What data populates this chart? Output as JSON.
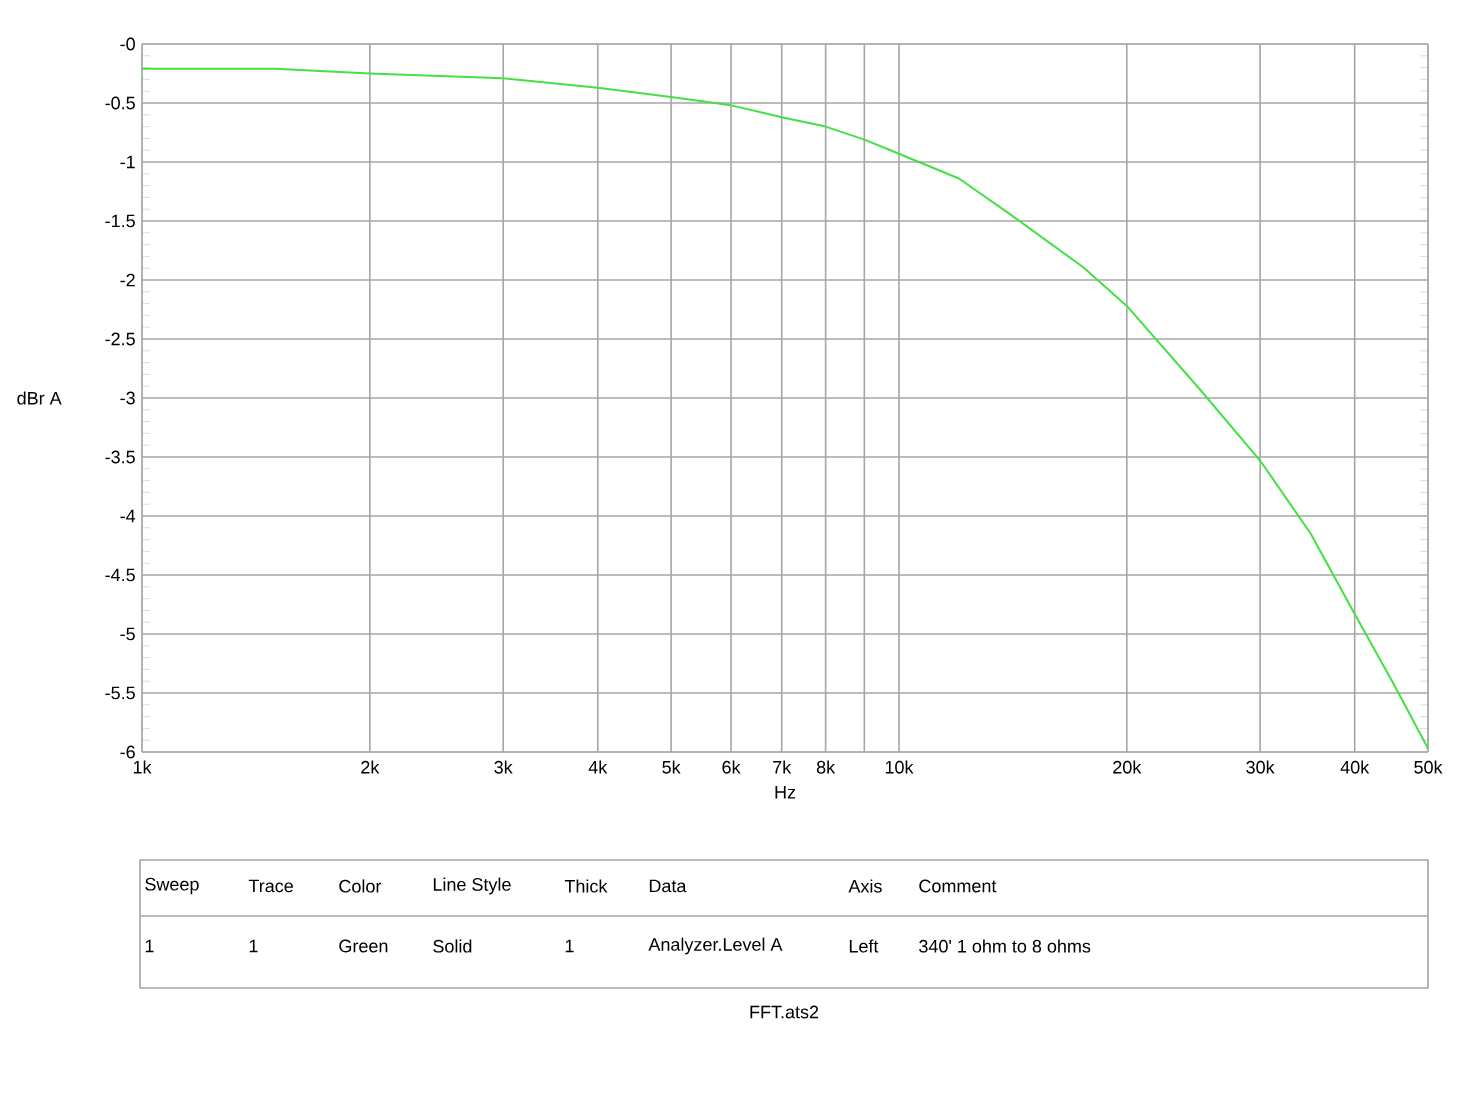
{
  "chart_data": {
    "type": "line",
    "xlabel": "Hz",
    "ylabel": "dBr A",
    "log": "x",
    "grid": true,
    "marker": "none",
    "line_style": "solid",
    "xlim": [
      1000,
      50000
    ],
    "ylim": [
      -6,
      0
    ],
    "xticks": [
      {
        "value": 1000,
        "label": "1k"
      },
      {
        "value": 2000,
        "label": "2k"
      },
      {
        "value": 3000,
        "label": "3k"
      },
      {
        "value": 4000,
        "label": "4k"
      },
      {
        "value": 5000,
        "label": "5k"
      },
      {
        "value": 6000,
        "label": "6k"
      },
      {
        "value": 7000,
        "label": "7k"
      },
      {
        "value": 8000,
        "label": "8k"
      },
      {
        "value": 9000,
        "label": null
      },
      {
        "value": 10000,
        "label": "10k"
      },
      {
        "value": 20000,
        "label": "20k"
      },
      {
        "value": 30000,
        "label": "30k"
      },
      {
        "value": 40000,
        "label": "40k"
      },
      {
        "value": 50000,
        "label": "50k"
      }
    ],
    "yticks": [
      {
        "value": 0,
        "label": "-0"
      },
      -0.5,
      -1,
      -1.5,
      -2,
      -2.5,
      -3,
      -3.5,
      -4,
      -4.5,
      -5,
      -5.5,
      -6
    ],
    "series": [
      {
        "color": "#44e044",
        "x": [
          1000,
          1500,
          2000,
          3000,
          4000,
          5000,
          6000,
          7000,
          8000,
          9000,
          10000,
          12000,
          14000,
          17500,
          20000,
          25000,
          30000,
          35000,
          40000,
          45000,
          50000
        ],
        "values": [
          -0.21,
          -0.21,
          -0.25,
          -0.29,
          -0.37,
          -0.45,
          -0.52,
          -0.62,
          -0.7,
          -0.81,
          -0.93,
          -1.14,
          -1.44,
          -1.89,
          -2.22,
          -2.93,
          -3.53,
          -4.15,
          -4.83,
          -5.42,
          -5.97
        ]
      }
    ],
    "annotations": [
      "Sweep",
      "Trace",
      "Color",
      "Line Style",
      "Thick",
      "Data",
      "Axis",
      "Comment",
      "1",
      "1",
      "Green",
      "Solid",
      "1",
      "Analyzer.Level A",
      "Left",
      "340' 1 ohm to 8 ohms",
      "FFT.ats2"
    ]
  }
}
